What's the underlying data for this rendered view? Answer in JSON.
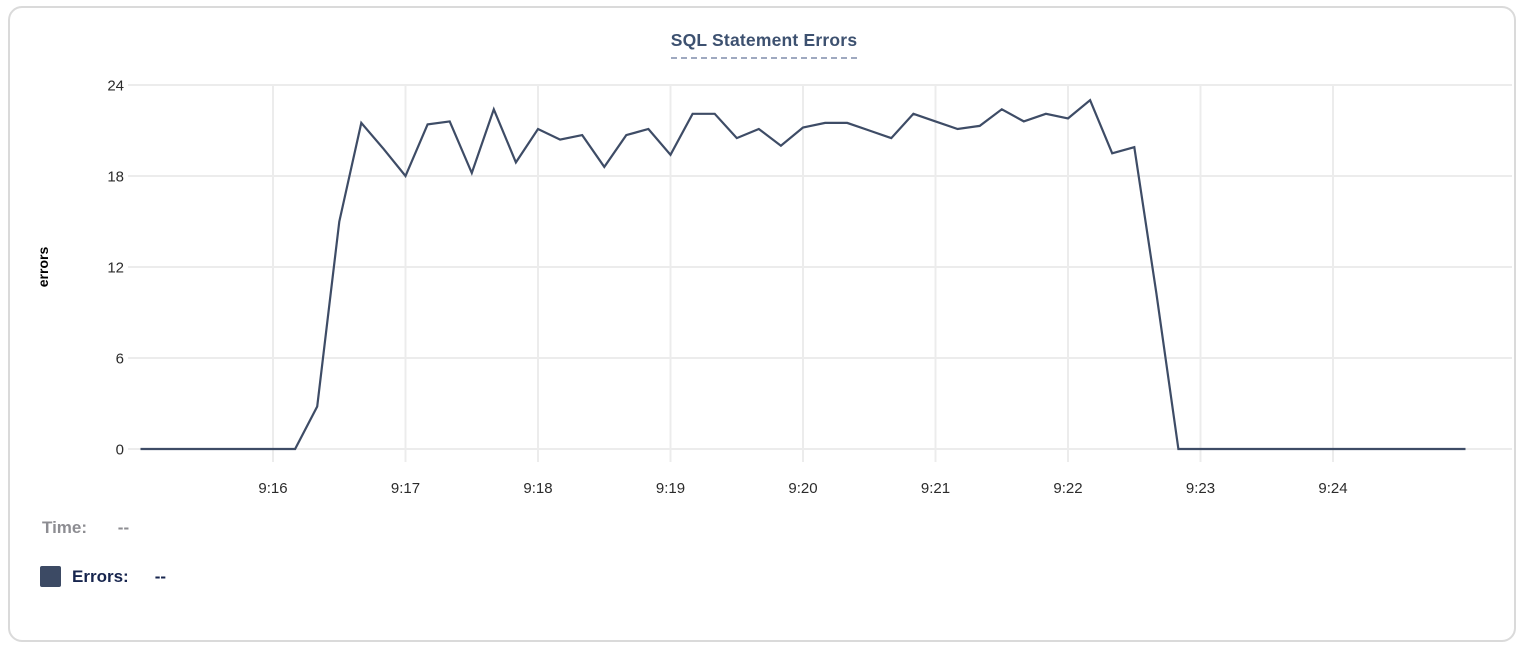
{
  "panel": {
    "background": "#ffffff",
    "border_color": "#dadada"
  },
  "chart_data": {
    "type": "line",
    "title": "SQL Statement Errors",
    "xlabel": "",
    "ylabel": "errors",
    "ylim": [
      0,
      24
    ],
    "y_ticks": [
      0,
      6,
      12,
      18,
      24
    ],
    "x_tick_labels": [
      "9:16",
      "9:17",
      "9:18",
      "9:19",
      "9:20",
      "9:21",
      "9:22",
      "9:23",
      "9:24"
    ],
    "grid": true,
    "legend_position": "none",
    "series": [
      {
        "name": "Errors",
        "color": "#3e4c66",
        "points": [
          [
            "9:15:00",
            0
          ],
          [
            "9:15:10",
            0
          ],
          [
            "9:15:20",
            0
          ],
          [
            "9:15:30",
            0
          ],
          [
            "9:15:40",
            0
          ],
          [
            "9:15:50",
            0
          ],
          [
            "9:16:00",
            0
          ],
          [
            "9:16:10",
            0
          ],
          [
            "9:16:20",
            2.8
          ],
          [
            "9:16:30",
            15
          ],
          [
            "9:16:40",
            21.5
          ],
          [
            "9:16:50",
            19.8
          ],
          [
            "9:17:00",
            18
          ],
          [
            "9:17:10",
            21.4
          ],
          [
            "9:17:20",
            21.6
          ],
          [
            "9:17:30",
            18.2
          ],
          [
            "9:17:40",
            22.4
          ],
          [
            "9:17:50",
            18.9
          ],
          [
            "9:18:00",
            21.1
          ],
          [
            "9:18:10",
            20.4
          ],
          [
            "9:18:20",
            20.7
          ],
          [
            "9:18:30",
            18.6
          ],
          [
            "9:18:40",
            20.7
          ],
          [
            "9:18:50",
            21.1
          ],
          [
            "9:19:00",
            19.4
          ],
          [
            "9:19:10",
            22.1
          ],
          [
            "9:19:20",
            22.1
          ],
          [
            "9:19:30",
            20.5
          ],
          [
            "9:19:40",
            21.1
          ],
          [
            "9:19:50",
            20.0
          ],
          [
            "9:20:00",
            21.2
          ],
          [
            "9:20:10",
            21.5
          ],
          [
            "9:20:20",
            21.5
          ],
          [
            "9:20:30",
            21.0
          ],
          [
            "9:20:40",
            20.5
          ],
          [
            "9:20:50",
            22.1
          ],
          [
            "9:21:00",
            21.6
          ],
          [
            "9:21:10",
            21.1
          ],
          [
            "9:21:20",
            21.3
          ],
          [
            "9:21:30",
            22.4
          ],
          [
            "9:21:40",
            21.6
          ],
          [
            "9:21:50",
            22.1
          ],
          [
            "9:22:00",
            21.8
          ],
          [
            "9:22:10",
            23.0
          ],
          [
            "9:22:20",
            19.5
          ],
          [
            "9:22:30",
            19.9
          ],
          [
            "9:22:40",
            10.3
          ],
          [
            "9:22:50",
            0
          ],
          [
            "9:23:00",
            0
          ],
          [
            "9:23:10",
            0
          ],
          [
            "9:23:20",
            0
          ],
          [
            "9:23:30",
            0
          ],
          [
            "9:23:40",
            0
          ],
          [
            "9:23:50",
            0
          ],
          [
            "9:24:00",
            0
          ],
          [
            "9:24:10",
            0
          ],
          [
            "9:24:20",
            0
          ],
          [
            "9:24:30",
            0
          ],
          [
            "9:24:40",
            0
          ],
          [
            "9:24:50",
            0
          ],
          [
            "9:25:00",
            0
          ]
        ]
      }
    ]
  },
  "tooltip": {
    "time_label": "Time:",
    "time_value": "--",
    "errors_label": "Errors:",
    "errors_value": "--",
    "swatch_color": "#3c4a64"
  },
  "colors": {
    "title": "#3d5170",
    "title_underline": "#9fa9c0",
    "grid": "#ececec",
    "axis_text": "#2b2b2b",
    "ylabel_text": "#000000",
    "line": "#3e4c66",
    "time_label": "#8d8d92",
    "errors_label": "#17254e",
    "panel_border": "#dadada"
  }
}
